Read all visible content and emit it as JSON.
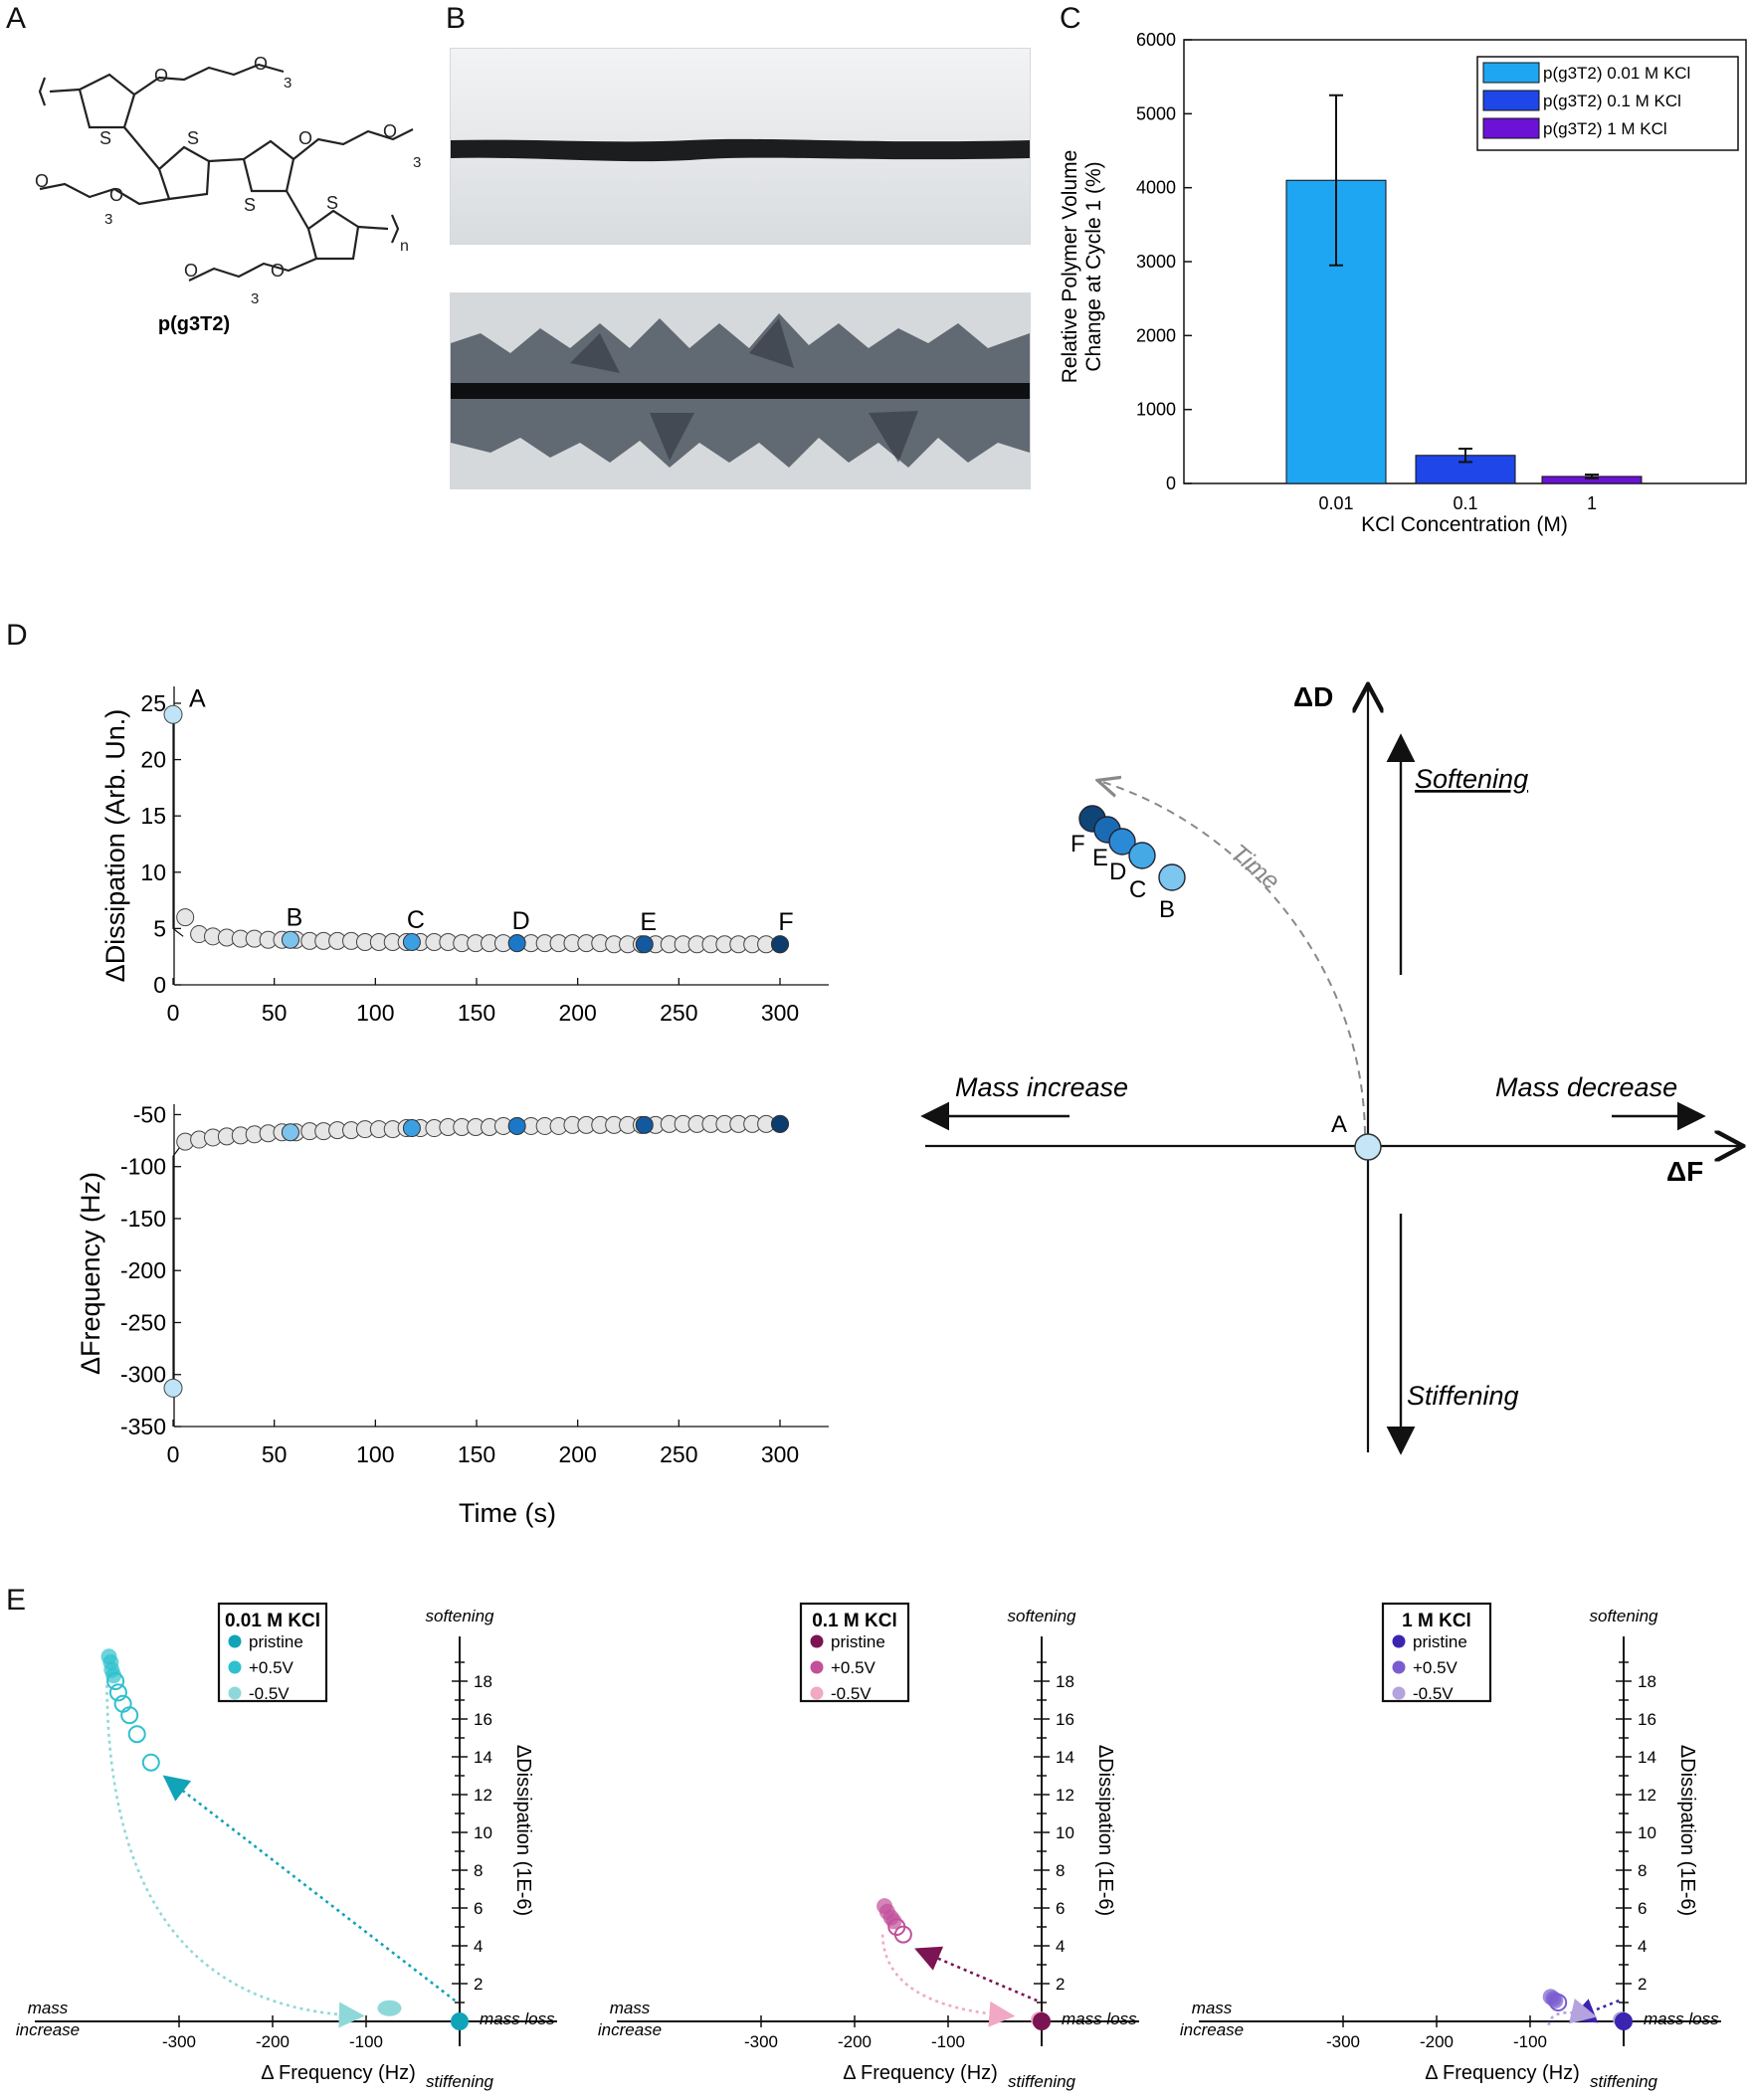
{
  "panels": {
    "a": "A",
    "b": "B",
    "c": "C",
    "d": "D",
    "e": "E"
  },
  "chem": {
    "name": "p(g3T2)",
    "sub3": "3",
    "subn": "n",
    "atom_s": "S",
    "atom_o": "O"
  },
  "chart_c": {
    "type": "bar",
    "categories": [
      "0.01",
      "0.1",
      "1"
    ],
    "values": [
      4100,
      380,
      95
    ],
    "errors": [
      1150,
      90,
      25
    ],
    "colors": [
      "#1ea6f2",
      "#1f46e8",
      "#6b12d6"
    ],
    "legend": [
      "p(g3T2) 0.01 M KCl",
      "p(g3T2) 0.1 M KCl",
      "p(g3T2) 1 M KCl"
    ],
    "xlabel": "KCl Concentration (M)",
    "ylabel": [
      "Relative Polymer Volume",
      "Change at Cycle 1 (%)"
    ],
    "ylim": [
      0,
      6000
    ],
    "yticks": [
      "0",
      "1000",
      "2000",
      "3000",
      "4000",
      "5000",
      "6000"
    ]
  },
  "chart_d_top": {
    "type": "scatter",
    "ylabel": "ΔDissipation (Arb. Un.)",
    "ylim": [
      0,
      25
    ],
    "xlim": [
      0,
      300
    ],
    "yticks": [
      "0",
      "5",
      "10",
      "15",
      "20",
      "25"
    ],
    "xticks": [
      "0",
      "50",
      "100",
      "150",
      "200",
      "250",
      "300"
    ],
    "first_point": {
      "x": 0,
      "y": 24
    },
    "points_y": [
      6,
      4.5,
      4.3,
      4.2,
      4.1,
      4.1,
      4.0,
      4.0,
      4.0,
      3.9,
      3.9,
      3.9,
      3.9,
      3.8,
      3.8,
      3.8,
      3.8,
      3.8,
      3.8,
      3.8,
      3.7,
      3.7,
      3.7,
      3.7,
      3.7,
      3.7,
      3.7,
      3.7,
      3.7,
      3.7,
      3.7,
      3.6,
      3.6,
      3.6,
      3.6,
      3.6,
      3.6,
      3.6,
      3.6,
      3.6,
      3.6,
      3.6,
      3.6,
      3.6
    ],
    "markers": [
      {
        "label": "B",
        "x": 58,
        "color": "#7cc3ee"
      },
      {
        "label": "C",
        "x": 118,
        "color": "#3aa0e3"
      },
      {
        "label": "D",
        "x": 170,
        "color": "#1b78c9"
      },
      {
        "label": "E",
        "x": 233,
        "color": "#12599f"
      },
      {
        "label": "F",
        "x": 300,
        "color": "#0d3c6e"
      }
    ],
    "label_a": "A"
  },
  "chart_d_bottom": {
    "type": "scatter",
    "ylabel": "ΔFrequency (Hz)",
    "xlabel": "Time (s)",
    "ylim": [
      -350,
      -50
    ],
    "yticks": [
      "-50",
      "-100",
      "-150",
      "-200",
      "-250",
      "-300",
      "-350"
    ],
    "xticks": [
      "0",
      "50",
      "100",
      "150",
      "200",
      "250",
      "300"
    ],
    "first_point": {
      "x": 0,
      "y": -313
    },
    "points_y": [
      -76,
      -74,
      -72,
      -71,
      -70,
      -69,
      -68,
      -67,
      -67,
      -66,
      -66,
      -65,
      -65,
      -64,
      -64,
      -64,
      -63,
      -63,
      -63,
      -62,
      -62,
      -62,
      -62,
      -61,
      -61,
      -61,
      -61,
      -61,
      -60,
      -60,
      -60,
      -60,
      -60,
      -60,
      -60,
      -59,
      -59,
      -59,
      -59,
      -59,
      -59,
      -59,
      -59,
      -59
    ]
  },
  "diagram_d": {
    "axis_d": "ΔD",
    "axis_f": "ΔF",
    "softening": "Softening",
    "stiffening": "Stiffening",
    "mass_increase": "Mass increase",
    "mass_decrease": "Mass decrease",
    "time": "Time",
    "origin": "A",
    "points": [
      {
        "label": "B",
        "color": "#7cc6f0"
      },
      {
        "label": "C",
        "color": "#45a9e6"
      },
      {
        "label": "D",
        "color": "#2a8ad6"
      },
      {
        "label": "E",
        "color": "#1a6bb4"
      },
      {
        "label": "F",
        "color": "#0e4576"
      }
    ]
  },
  "panel_e": {
    "xlabel": "Δ Frequency (Hz)",
    "ylabel": "ΔDissipation (1E-6)",
    "xticks": [
      "-300",
      "-200",
      "-100"
    ],
    "yticks": [
      "2",
      "4",
      "6",
      "8",
      "10",
      "12",
      "14",
      "16",
      "18"
    ],
    "softening": "softening",
    "stiffening": "stiffening",
    "mass_increase": [
      "mass",
      "increase"
    ],
    "mass_loss": "mass loss",
    "legend_items": [
      "pristine",
      "+0.5V",
      "-0.5V"
    ],
    "subplots": [
      {
        "title": "0.01 M KCl",
        "colors": [
          "#11a3b8",
          "#2fc0cf",
          "#8fd8da"
        ],
        "pos05": [
          {
            "x": -375,
            "y": 19.3
          },
          {
            "x": -373,
            "y": 19.0
          },
          {
            "x": -372,
            "y": 18.6
          },
          {
            "x": -370,
            "y": 18.3
          }
        ],
        "neg05": [
          {
            "x": -368,
            "y": 18.0
          },
          {
            "x": -365,
            "y": 17.4
          },
          {
            "x": -360,
            "y": 16.8
          },
          {
            "x": -353,
            "y": 16.2
          },
          {
            "x": -345,
            "y": 15.2
          },
          {
            "x": -330,
            "y": 13.7
          }
        ],
        "endpoint": [
          {
            "x": -75,
            "y": 0.7
          }
        ]
      },
      {
        "title": "0.1 M KCl",
        "colors": [
          "#7a1452",
          "#c2509a",
          "#f0a8c4"
        ],
        "pos05": [
          {
            "x": -168,
            "y": 6.1
          },
          {
            "x": -165,
            "y": 5.8
          },
          {
            "x": -161,
            "y": 5.5
          },
          {
            "x": -158,
            "y": 5.3
          }
        ],
        "neg05": [
          {
            "x": -155,
            "y": 5.0
          },
          {
            "x": -148,
            "y": 4.6
          }
        ],
        "endpoint": [
          {
            "x": -2,
            "y": 0.1
          }
        ]
      },
      {
        "title": "1 M KCl",
        "colors": [
          "#3b24b0",
          "#7b5cd0",
          "#b4a3de"
        ],
        "pos05": [
          {
            "x": -78,
            "y": 1.3
          },
          {
            "x": -75,
            "y": 1.2
          },
          {
            "x": -73,
            "y": 1.1
          }
        ],
        "neg05": [
          {
            "x": -70,
            "y": 1.0
          }
        ],
        "endpoint": [
          {
            "x": -2,
            "y": 0.1
          }
        ]
      }
    ]
  }
}
